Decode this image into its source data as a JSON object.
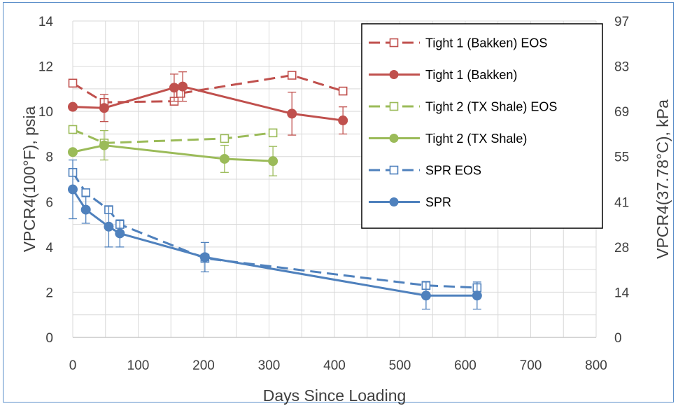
{
  "chart_data": {
    "type": "scatter",
    "xlabel": "Days Since Loading",
    "ylabel": "VPCR4(100°F), psia",
    "y2label": "VPCR4(37.78°C), kPa",
    "xlim": [
      0,
      800
    ],
    "ylim": [
      0,
      14
    ],
    "y2lim": [
      0,
      97
    ],
    "x_ticks": [
      "0",
      "100",
      "200",
      "300",
      "400",
      "500",
      "600",
      "700",
      "800"
    ],
    "y_ticks": [
      "0",
      "2",
      "4",
      "6",
      "8",
      "10",
      "12",
      "14"
    ],
    "y2_ticks": [
      "0",
      "14",
      "28",
      "41",
      "55",
      "69",
      "83",
      "97"
    ],
    "grid": true,
    "legend_position": "top-right",
    "series": [
      {
        "name": "Tight 1 (Bakken) EOS",
        "color": "#c0504d",
        "dashed": true,
        "marker": "square-open",
        "x": [
          0,
          48,
          155,
          165,
          335,
          413
        ],
        "y": [
          11.25,
          10.4,
          10.45,
          10.8,
          11.6,
          10.9
        ],
        "err": [
          0,
          0,
          0,
          0,
          0,
          0
        ]
      },
      {
        "name": "Tight 1 (Bakken)",
        "color": "#c0504d",
        "dashed": false,
        "marker": "circle",
        "x": [
          0,
          48,
          155,
          168,
          335,
          413
        ],
        "y": [
          10.2,
          10.15,
          11.05,
          11.1,
          9.9,
          9.6
        ],
        "err": [
          0,
          0.6,
          0.6,
          0.65,
          0.95,
          0.6
        ]
      },
      {
        "name": "Tight 2 (TX Shale) EOS",
        "color": "#9bbb59",
        "dashed": true,
        "marker": "square-open",
        "x": [
          0,
          48,
          232,
          306
        ],
        "y": [
          9.2,
          8.6,
          8.8,
          9.05
        ],
        "err": [
          0,
          0,
          0,
          0
        ]
      },
      {
        "name": "Tight 2 (TX Shale)",
        "color": "#9bbb59",
        "dashed": false,
        "marker": "circle",
        "x": [
          0,
          48,
          232,
          306
        ],
        "y": [
          8.2,
          8.5,
          7.9,
          7.8
        ],
        "err": [
          0,
          0.65,
          0.6,
          0.65
        ]
      },
      {
        "name": "SPR EOS",
        "color": "#4f81bd",
        "dashed": true,
        "marker": "square-open",
        "x": [
          0,
          20,
          55,
          72,
          202,
          540,
          618
        ],
        "y": [
          7.3,
          6.4,
          5.65,
          5.0,
          3.5,
          2.3,
          2.2
        ],
        "err": [
          0,
          0,
          0,
          0,
          0,
          0,
          0
        ]
      },
      {
        "name": "SPR",
        "color": "#4f81bd",
        "dashed": false,
        "marker": "circle",
        "x": [
          0,
          20,
          55,
          72,
          202,
          540,
          618
        ],
        "y": [
          6.55,
          5.65,
          4.9,
          4.6,
          3.55,
          1.85,
          1.85
        ],
        "err": [
          1.3,
          0.6,
          0.9,
          0.6,
          0.65,
          0.6,
          0.6
        ]
      }
    ]
  }
}
